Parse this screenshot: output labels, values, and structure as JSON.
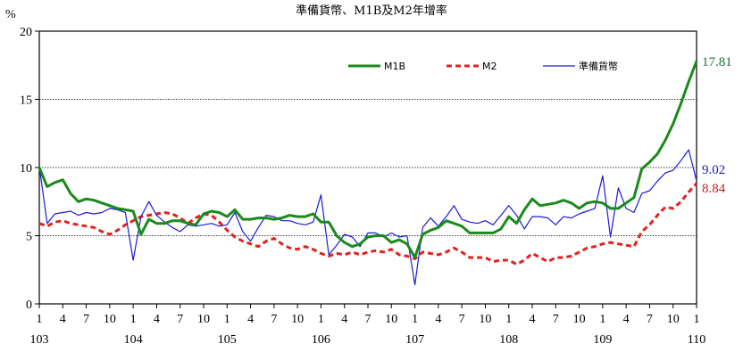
{
  "chart_data": {
    "type": "line",
    "title": "準備貨幣、M1B及M2年增率",
    "ylabel": "%",
    "ylim": [
      0,
      20
    ],
    "yticks": [
      "0",
      "5",
      "10",
      "15",
      "20"
    ],
    "gridlines": [
      5,
      10,
      15
    ],
    "month_ticks": [
      "1",
      "4",
      "7",
      "10",
      "1",
      "4",
      "7",
      "10",
      "1",
      "4",
      "7",
      "10",
      "1",
      "4",
      "7",
      "10",
      "1",
      "4",
      "7",
      "10",
      "1",
      "4",
      "7",
      "10",
      "1",
      "4",
      "7",
      "10",
      "1"
    ],
    "year_labels": [
      "103",
      "104",
      "105",
      "106",
      "107",
      "108",
      "109",
      "110"
    ],
    "legend_position": "top-right",
    "series": [
      {
        "name": "M1B",
        "color": "#1a8a1a",
        "values": [
          10.0,
          8.6,
          8.9,
          9.1,
          8.1,
          7.5,
          7.7,
          7.6,
          7.4,
          7.2,
          7.0,
          6.9,
          6.8,
          5.1,
          6.2,
          5.9,
          5.9,
          6.1,
          6.1,
          5.9,
          5.8,
          6.6,
          6.8,
          6.7,
          6.4,
          6.9,
          6.2,
          6.2,
          6.3,
          6.3,
          6.2,
          6.3,
          6.5,
          6.4,
          6.4,
          6.6,
          6.0,
          6.0,
          5.0,
          4.5,
          4.2,
          4.4,
          4.9,
          5.0,
          5.0,
          4.5,
          4.7,
          4.4,
          3.4,
          5.1,
          5.4,
          5.6,
          6.1,
          5.9,
          5.7,
          5.2,
          5.2,
          5.2,
          5.2,
          5.5,
          6.4,
          5.9,
          6.9,
          7.7,
          7.2,
          7.3,
          7.4,
          7.6,
          7.4,
          7.0,
          7.4,
          7.5,
          7.4,
          7.0,
          7.0,
          7.4,
          7.8,
          9.9,
          10.4,
          11.0,
          12.0,
          13.2,
          14.7,
          16.3,
          17.81
        ]
      },
      {
        "name": "M2",
        "color": "#e0221e",
        "values": [
          5.9,
          5.7,
          6.0,
          6.1,
          5.9,
          5.8,
          5.7,
          5.6,
          5.3,
          5.1,
          5.4,
          5.8,
          6.1,
          6.4,
          6.5,
          6.6,
          6.7,
          6.6,
          6.3,
          5.9,
          6.3,
          6.6,
          6.5,
          6.0,
          5.4,
          4.9,
          4.6,
          4.4,
          4.2,
          4.6,
          4.8,
          4.4,
          4.1,
          4.0,
          4.2,
          4.0,
          3.7,
          3.5,
          3.7,
          3.6,
          3.8,
          3.6,
          3.8,
          3.9,
          3.8,
          4.0,
          3.6,
          3.5,
          3.3,
          3.8,
          3.7,
          3.6,
          3.8,
          4.1,
          3.8,
          3.4,
          3.4,
          3.4,
          3.1,
          3.2,
          3.2,
          2.9,
          3.2,
          3.7,
          3.4,
          3.1,
          3.4,
          3.4,
          3.5,
          3.8,
          4.1,
          4.2,
          4.4,
          4.5,
          4.4,
          4.3,
          4.2,
          5.3,
          5.8,
          6.5,
          7.1,
          7.0,
          7.5,
          8.2,
          8.84
        ]
      },
      {
        "name": "準備貨幣",
        "color": "#1a1adc",
        "values": [
          10.1,
          5.9,
          6.6,
          6.7,
          6.8,
          6.5,
          6.7,
          6.6,
          6.7,
          7.0,
          6.9,
          6.7,
          3.2,
          6.4,
          7.5,
          6.5,
          6.0,
          5.6,
          5.3,
          5.8,
          5.7,
          5.8,
          5.9,
          5.7,
          5.8,
          6.7,
          5.3,
          4.6,
          5.6,
          6.5,
          6.4,
          6.1,
          6.1,
          5.9,
          5.8,
          6.0,
          8.0,
          3.6,
          4.3,
          5.1,
          4.9,
          4.2,
          5.2,
          5.2,
          4.9,
          5.2,
          4.9,
          5.0,
          1.4,
          5.6,
          6.3,
          5.7,
          6.4,
          7.2,
          6.2,
          6.0,
          5.9,
          6.1,
          5.8,
          6.5,
          7.2,
          6.5,
          5.5,
          6.4,
          6.4,
          6.3,
          5.8,
          6.4,
          6.3,
          6.6,
          6.8,
          7.0,
          9.4,
          4.9,
          8.5,
          7.0,
          6.7,
          8.1,
          8.3,
          9.0,
          9.6,
          9.8,
          10.5,
          11.3,
          9.02
        ]
      }
    ],
    "end_labels": [
      {
        "text": "17.81",
        "color": "#1a6e3c"
      },
      {
        "text": "9.02",
        "color": "#1a1aa8"
      },
      {
        "text": "8.84",
        "color": "#c0201c"
      }
    ]
  }
}
